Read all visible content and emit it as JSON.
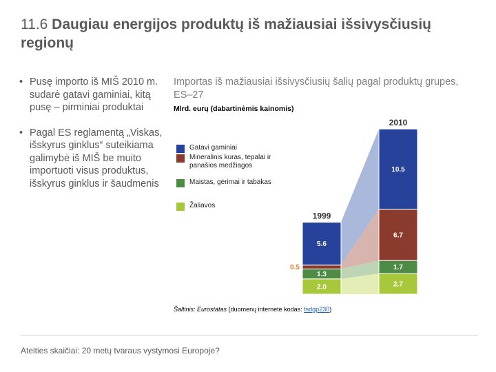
{
  "slide": {
    "number": "11.6",
    "title": "Daugiau energijos produktų iš mažiausiai išsivysčiusių regionų",
    "bullets": [
      "Pusę importo iš MIŠ 2010 m. sudarė gatavi gaminiai, kitą pusę – pirminiai produktai",
      "Pagal ES reglamentą „Viskas, išskyrus ginklus“ suteikiama galimybė iš MIŠ be muito importuoti visus produktus, išskyrus ginklus ir šaudmenis"
    ],
    "footer": "Ateities skaičiai: 20 metų tvaraus vystymosi Europoje?"
  },
  "source": {
    "prefix": "Šaltinis:",
    "name": "Eurostatas",
    "middle": "(duomenų internete kodas:",
    "code": "tsdgp230",
    "suffix": ")"
  },
  "chart_data": {
    "type": "bar",
    "title": "Importas iš mažiausiai išsivysčiusių šalių pagal produktų grupes, ES–27",
    "ylabel": "Mlrd. eurų (dabartinėmis kainomis)",
    "categories": [
      "1999",
      "2010"
    ],
    "stacked": true,
    "series": [
      {
        "name": "Žaliavos",
        "color": "#a8c83c",
        "values": [
          2.0,
          2.7
        ]
      },
      {
        "name": "Maistas, gėrimai ir tabakas",
        "color": "#4e8c46",
        "values": [
          1.3,
          1.7
        ]
      },
      {
        "name": "Mineralinis kuras, tepalai ir panašios medžiagos",
        "color": "#8b3a2e",
        "values": [
          0.5,
          6.7
        ]
      },
      {
        "name": "Gatavi gaminiai",
        "color": "#26429a",
        "values": [
          5.6,
          10.5
        ]
      }
    ],
    "value_labels": [
      [
        "2.0",
        "2.7"
      ],
      [
        "1.3",
        "1.7"
      ],
      [
        "0.5",
        "6.7"
      ],
      [
        "5.6",
        "10.5"
      ]
    ],
    "ylim": [
      0,
      22
    ]
  }
}
